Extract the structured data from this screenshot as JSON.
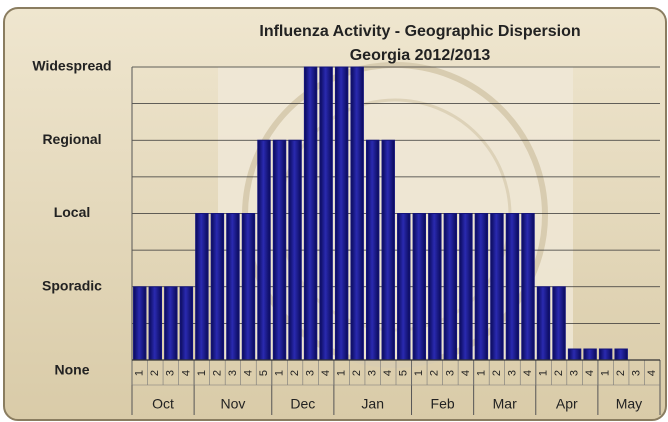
{
  "chart_data": {
    "type": "bar",
    "title": "Influenza Activity - Geographic Dispersion",
    "subtitle": "Georgia 2012/2013",
    "color": "#14147a",
    "ylim": [
      0,
      4
    ],
    "yticks": [
      {
        "value": 0,
        "label": "None"
      },
      {
        "value": 1,
        "label": "Sporadic"
      },
      {
        "value": 2,
        "label": "Local"
      },
      {
        "value": 3,
        "label": "Regional"
      },
      {
        "value": 4,
        "label": "Widespread"
      }
    ],
    "minor_yticks": [
      0.5,
      1.5,
      2.5,
      3.5
    ],
    "grid": true,
    "months": [
      {
        "name": "Oct",
        "weeks": [
          "1",
          "2",
          "3",
          "4"
        ],
        "values": [
          1,
          1,
          1,
          1
        ]
      },
      {
        "name": "Nov",
        "weeks": [
          "1",
          "2",
          "3",
          "4",
          "5"
        ],
        "values": [
          2,
          2,
          2,
          2,
          3
        ]
      },
      {
        "name": "Dec",
        "weeks": [
          "1",
          "2",
          "3",
          "4"
        ],
        "values": [
          3,
          3,
          4,
          4
        ]
      },
      {
        "name": "Jan",
        "weeks": [
          "1",
          "2",
          "3",
          "4",
          "5"
        ],
        "values": [
          4,
          4,
          3,
          3,
          2
        ]
      },
      {
        "name": "Feb",
        "weeks": [
          "1",
          "2",
          "3",
          "4"
        ],
        "values": [
          2,
          2,
          2,
          2
        ]
      },
      {
        "name": "Mar",
        "weeks": [
          "1",
          "2",
          "3",
          "4"
        ],
        "values": [
          2,
          2,
          2,
          2
        ]
      },
      {
        "name": "Apr",
        "weeks": [
          "1",
          "2",
          "3",
          "4"
        ],
        "values": [
          1,
          1,
          0.15,
          0.15
        ]
      },
      {
        "name": "May",
        "weeks": [
          "1",
          "2",
          "3",
          "4"
        ],
        "values": [
          0.15,
          0.15,
          null,
          null
        ]
      }
    ]
  }
}
